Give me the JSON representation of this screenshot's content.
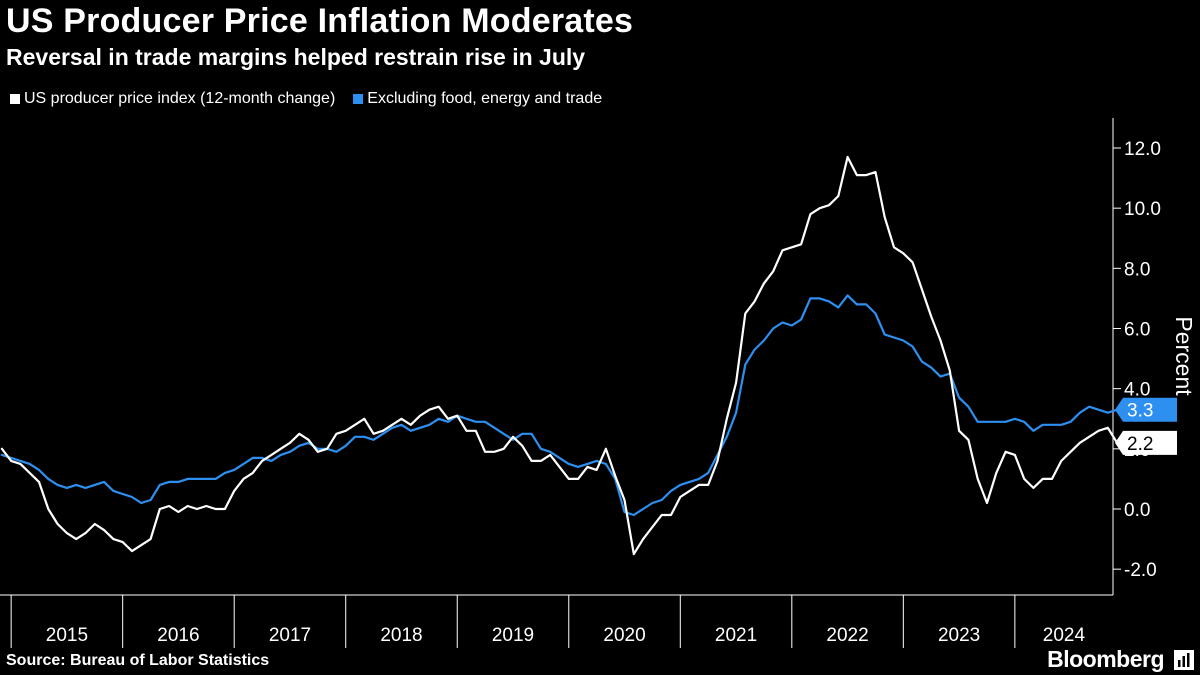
{
  "colors": {
    "background": "#000000",
    "series_white": "#ffffff",
    "series_blue": "#2d8ff0"
  },
  "chart_data": {
    "type": "line",
    "title": "US Producer Price Inflation Moderates",
    "subtitle": "Reversal in trade margins helped restrain rise in July",
    "ylabel": "Percent",
    "xlabel": "",
    "ylim": [
      -3.0,
      13.0
    ],
    "yticks": [
      -2.0,
      0.0,
      2.0,
      4.0,
      6.0,
      8.0,
      10.0,
      12.0
    ],
    "ytick_labels": [
      "-2.0",
      "0.0",
      "2.0",
      "4.0",
      "6.0",
      "8.0",
      "10.0",
      "12.0"
    ],
    "xlim": [
      2014.9,
      2024.88
    ],
    "year_labels": [
      "2015",
      "2016",
      "2017",
      "2018",
      "2019",
      "2020",
      "2021",
      "2022",
      "2023",
      "2024"
    ],
    "start": [
      2014,
      12
    ],
    "series": [
      {
        "name": "US producer price index (12-month change)",
        "color": "#ffffff",
        "last_value_label": "2.2",
        "values": [
          2.0,
          1.6,
          1.5,
          1.2,
          0.9,
          0.0,
          -0.5,
          -0.8,
          -1.0,
          -0.8,
          -0.5,
          -0.7,
          -1.0,
          -1.1,
          -1.4,
          -1.2,
          -1.0,
          0.0,
          0.1,
          -0.1,
          0.1,
          0.0,
          0.1,
          0.0,
          0.0,
          0.6,
          1.0,
          1.2,
          1.6,
          1.8,
          2.0,
          2.2,
          2.5,
          2.3,
          1.9,
          2.0,
          2.5,
          2.6,
          2.8,
          3.0,
          2.5,
          2.6,
          2.8,
          3.0,
          2.8,
          3.1,
          3.3,
          3.4,
          3.0,
          3.1,
          2.6,
          2.6,
          1.9,
          1.9,
          2.0,
          2.4,
          2.1,
          1.6,
          1.6,
          1.8,
          1.4,
          1.0,
          1.0,
          1.4,
          1.3,
          2.0,
          1.1,
          0.3,
          -1.5,
          -1.0,
          -0.6,
          -0.2,
          -0.2,
          0.4,
          0.6,
          0.8,
          0.8,
          1.6,
          3.0,
          4.2,
          6.5,
          6.9,
          7.5,
          7.9,
          8.6,
          8.7,
          8.8,
          9.8,
          10.0,
          10.1,
          10.4,
          11.7,
          11.1,
          11.1,
          11.2,
          9.7,
          8.7,
          8.5,
          8.2,
          7.3,
          6.4,
          5.6,
          4.6,
          2.6,
          2.3,
          1.0,
          0.2,
          1.2,
          1.9,
          1.8,
          1.0,
          0.7,
          1.0,
          1.0,
          1.6,
          1.9,
          2.2,
          2.4,
          2.6,
          2.7,
          2.2
        ]
      },
      {
        "name": "Excluding food, energy and trade",
        "color": "#2d8ff0",
        "last_value_label": "3.3",
        "values": [
          1.8,
          1.7,
          1.6,
          1.5,
          1.3,
          1.0,
          0.8,
          0.7,
          0.8,
          0.7,
          0.8,
          0.9,
          0.6,
          0.5,
          0.4,
          0.2,
          0.3,
          0.8,
          0.9,
          0.9,
          1.0,
          1.0,
          1.0,
          1.0,
          1.2,
          1.3,
          1.5,
          1.7,
          1.7,
          1.6,
          1.8,
          1.9,
          2.1,
          2.2,
          2.0,
          2.0,
          1.9,
          2.1,
          2.4,
          2.4,
          2.3,
          2.5,
          2.7,
          2.8,
          2.6,
          2.7,
          2.8,
          3.0,
          2.9,
          3.1,
          3.0,
          2.9,
          2.9,
          2.7,
          2.5,
          2.3,
          2.5,
          2.5,
          2.0,
          1.9,
          1.7,
          1.5,
          1.4,
          1.5,
          1.6,
          1.5,
          1.0,
          -0.1,
          -0.2,
          0.0,
          0.2,
          0.3,
          0.6,
          0.8,
          0.9,
          1.0,
          1.2,
          1.8,
          2.4,
          3.2,
          4.8,
          5.3,
          5.6,
          6.0,
          6.2,
          6.1,
          6.3,
          7.0,
          7.0,
          6.9,
          6.7,
          7.1,
          6.8,
          6.8,
          6.5,
          5.8,
          5.7,
          5.6,
          5.4,
          4.9,
          4.7,
          4.4,
          4.5,
          3.7,
          3.4,
          2.9,
          2.9,
          2.9,
          2.9,
          3.0,
          2.9,
          2.6,
          2.8,
          2.8,
          2.8,
          2.9,
          3.2,
          3.4,
          3.3,
          3.2,
          3.3
        ]
      }
    ],
    "legend_position": "top-left",
    "grid": false,
    "y_axis_side": "right"
  },
  "footer": {
    "source": "Source: Bureau of Labor Statistics",
    "brand": "Bloomberg"
  }
}
